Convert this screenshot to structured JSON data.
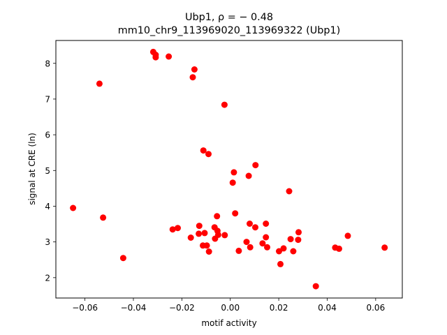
{
  "chart_data": {
    "type": "scatter",
    "title_line1": "Ubp1, ρ = − 0.48",
    "title_line2": "mm10_chr9_113969020_113969322 (Ubp1)",
    "xlabel": "motif activity",
    "ylabel": "signal at CRE (ln)",
    "xlim": [
      -0.072,
      0.071
    ],
    "ylim": [
      1.43,
      8.64
    ],
    "xticks": [
      {
        "value": -0.06,
        "label": "−0.06"
      },
      {
        "value": -0.04,
        "label": "−0.04"
      },
      {
        "value": -0.02,
        "label": "−0.02"
      },
      {
        "value": 0.0,
        "label": "0.00"
      },
      {
        "value": 0.02,
        "label": "0.02"
      },
      {
        "value": 0.04,
        "label": "0.04"
      },
      {
        "value": 0.06,
        "label": "0.06"
      }
    ],
    "yticks": [
      {
        "value": 2,
        "label": "2"
      },
      {
        "value": 3,
        "label": "3"
      },
      {
        "value": 4,
        "label": "4"
      },
      {
        "value": 5,
        "label": "5"
      },
      {
        "value": 6,
        "label": "6"
      },
      {
        "value": 7,
        "label": "7"
      },
      {
        "value": 8,
        "label": "8"
      }
    ],
    "grid": false,
    "marker_color": "#ff0000",
    "points": [
      {
        "x": -0.0318,
        "y": 8.32
      },
      {
        "x": -0.0308,
        "y": 8.24
      },
      {
        "x": -0.0308,
        "y": 8.17
      },
      {
        "x": -0.0254,
        "y": 8.19
      },
      {
        "x": -0.0148,
        "y": 7.83
      },
      {
        "x": -0.0155,
        "y": 7.61
      },
      {
        "x": -0.054,
        "y": 7.43
      },
      {
        "x": -0.0024,
        "y": 6.84
      },
      {
        "x": -0.0111,
        "y": 5.56
      },
      {
        "x": -0.009,
        "y": 5.46
      },
      {
        "x": 0.0104,
        "y": 5.15
      },
      {
        "x": 0.0015,
        "y": 4.95
      },
      {
        "x": 0.0076,
        "y": 4.85
      },
      {
        "x": 0.001,
        "y": 4.66
      },
      {
        "x": 0.0243,
        "y": 4.42
      },
      {
        "x": -0.0649,
        "y": 3.95
      },
      {
        "x": 0.002,
        "y": 3.8
      },
      {
        "x": -0.0055,
        "y": 3.72
      },
      {
        "x": -0.0525,
        "y": 3.68
      },
      {
        "x": 0.008,
        "y": 3.51
      },
      {
        "x": 0.0147,
        "y": 3.51
      },
      {
        "x": -0.0128,
        "y": 3.45
      },
      {
        "x": -0.0065,
        "y": 3.41
      },
      {
        "x": 0.0103,
        "y": 3.41
      },
      {
        "x": -0.0238,
        "y": 3.35
      },
      {
        "x": -0.0217,
        "y": 3.39
      },
      {
        "x": -0.0053,
        "y": 3.31
      },
      {
        "x": 0.0282,
        "y": 3.27
      },
      {
        "x": -0.013,
        "y": 3.23
      },
      {
        "x": -0.0106,
        "y": 3.25
      },
      {
        "x": -0.005,
        "y": 3.2
      },
      {
        "x": -0.0023,
        "y": 3.19
      },
      {
        "x": 0.0485,
        "y": 3.17
      },
      {
        "x": 0.0147,
        "y": 3.13
      },
      {
        "x": -0.0163,
        "y": 3.12
      },
      {
        "x": -0.0063,
        "y": 3.09
      },
      {
        "x": 0.0249,
        "y": 3.08
      },
      {
        "x": 0.028,
        "y": 3.06
      },
      {
        "x": 0.0067,
        "y": 3.0
      },
      {
        "x": 0.0133,
        "y": 2.96
      },
      {
        "x": -0.0113,
        "y": 2.9
      },
      {
        "x": -0.0097,
        "y": 2.9
      },
      {
        "x": 0.0082,
        "y": 2.85
      },
      {
        "x": 0.0152,
        "y": 2.85
      },
      {
        "x": 0.022,
        "y": 2.82
      },
      {
        "x": 0.0433,
        "y": 2.84
      },
      {
        "x": 0.0449,
        "y": 2.81
      },
      {
        "x": 0.0637,
        "y": 2.84
      },
      {
        "x": -0.0088,
        "y": 2.73
      },
      {
        "x": 0.0035,
        "y": 2.75
      },
      {
        "x": 0.0201,
        "y": 2.74
      },
      {
        "x": 0.026,
        "y": 2.74
      },
      {
        "x": -0.0442,
        "y": 2.55
      },
      {
        "x": 0.0207,
        "y": 2.38
      },
      {
        "x": 0.0353,
        "y": 1.76
      }
    ]
  }
}
